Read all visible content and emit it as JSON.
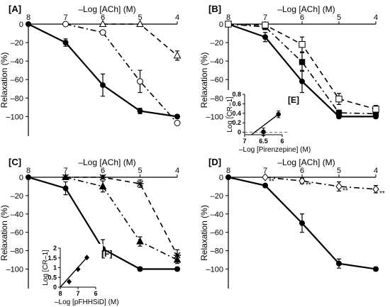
{
  "chart_data": [
    {
      "type": "line",
      "panel_label": "[A]",
      "xlabel": "–Log [ACh] (M)",
      "ylabel": "Relaxation (%)",
      "xticks": [
        "8",
        "7",
        "6",
        "5",
        "4"
      ],
      "yticks": [
        "0",
        "–20",
        "–40",
        "–60",
        "–80",
        "–100"
      ],
      "xlim": [
        8,
        4
      ],
      "ylim": [
        -112,
        0
      ],
      "series": [
        {
          "style": "solid",
          "marker": "filled-circle",
          "x": [
            8,
            7,
            6,
            5,
            4
          ],
          "y": [
            0,
            -20,
            -66,
            -94,
            -100
          ],
          "err": [
            0,
            4,
            12,
            3,
            2
          ]
        },
        {
          "style": "dashdot",
          "marker": "open-circle",
          "x": [
            7,
            6,
            5,
            4
          ],
          "y": [
            0,
            -9,
            -62,
            -107
          ],
          "err": [
            0,
            2,
            12,
            2
          ]
        },
        {
          "style": "dashed",
          "marker": "open-triangle",
          "x": [
            6,
            5,
            4
          ],
          "y": [
            0,
            0,
            -34
          ],
          "err": [
            0,
            0,
            5
          ]
        }
      ]
    },
    {
      "type": "line",
      "panel_label": "[B]",
      "xlabel": "–Log [ACh] (M)",
      "ylabel": "Relaxation (%)",
      "xticks": [
        "8",
        "7",
        "6",
        "5",
        "4"
      ],
      "yticks": [
        "0",
        "–20",
        "–40",
        "–60",
        "–80",
        "–100"
      ],
      "xlim": [
        8,
        4
      ],
      "ylim": [
        -112,
        0
      ],
      "series": [
        {
          "style": "solid",
          "marker": "filled-circle",
          "x": [
            8,
            7,
            6,
            5,
            4
          ],
          "y": [
            0,
            -14,
            -62,
            -100,
            -100
          ],
          "err": [
            0,
            5,
            12,
            2,
            2
          ]
        },
        {
          "style": "dashdot",
          "marker": "filled-square",
          "x": [
            8,
            7,
            6,
            5,
            4
          ],
          "y": [
            0,
            -3,
            -41,
            -96,
            -97
          ],
          "err": [
            0,
            3,
            10,
            3,
            3
          ]
        },
        {
          "style": "dashed",
          "marker": "open-square",
          "x": [
            8,
            7,
            6,
            5,
            4
          ],
          "y": [
            0,
            -1,
            -22,
            -81,
            -92
          ],
          "err": [
            0,
            2,
            8,
            6,
            4
          ]
        }
      ],
      "inset": {
        "label": "[E]",
        "xlabel": "–Log [Pirenzepine] (M)",
        "ylabel": "Log [CR–1]",
        "xticks": [
          "7",
          "6.5",
          "6"
        ],
        "yticks": [
          "0.8",
          "0.6",
          "0.4",
          "0.2",
          "0"
        ],
        "xlim": [
          7,
          6
        ],
        "ylim": [
          -0.05,
          0.8
        ],
        "reference_y": 0,
        "points": {
          "x": [
            6.5,
            6.1
          ],
          "y": [
            0.01,
            0.38
          ],
          "err": [
            0.08,
            0.07
          ]
        },
        "line": {
          "x": [
            6.82,
            6.1
          ],
          "y": [
            -0.05,
            0.38
          ]
        }
      }
    },
    {
      "type": "line",
      "panel_label": "[C]",
      "xlabel": "–Log [ACh] (M)",
      "ylabel": "Relaxation (%)",
      "xticks": [
        "8",
        "7",
        "6",
        "5",
        "4"
      ],
      "yticks": [
        "0",
        "–20",
        "–40",
        "–60",
        "–80",
        "–100"
      ],
      "xlim": [
        8,
        4
      ],
      "ylim": [
        -112,
        0
      ],
      "series": [
        {
          "style": "solid",
          "marker": "filled-circle",
          "x": [
            8,
            7,
            6,
            5,
            4
          ],
          "y": [
            0,
            -12,
            -78,
            -100,
            -100
          ],
          "err": [
            0,
            7,
            10,
            2,
            2
          ]
        },
        {
          "style": "dashdot",
          "marker": "filled-triangle",
          "x": [
            7,
            6,
            5,
            4
          ],
          "y": [
            0,
            -10,
            -70,
            -90
          ],
          "err": [
            0,
            6,
            5,
            4
          ]
        },
        {
          "style": "dashed",
          "marker": "star",
          "x": [
            7,
            6,
            5,
            4
          ],
          "y": [
            0,
            0,
            -7,
            -85
          ],
          "err": [
            0,
            2,
            4,
            6
          ]
        }
      ],
      "inset": {
        "label": "[F]",
        "xlabel": "–Log [pFHHSiD] (M)",
        "ylabel": "Log [CR–1]",
        "xticks": [
          "8",
          "7",
          "6"
        ],
        "yticks": [
          "2",
          "1.5",
          "1",
          "0.5",
          "0"
        ],
        "xlim": [
          8,
          6
        ],
        "ylim": [
          0,
          2
        ],
        "points": {
          "x": [
            7.5,
            7,
            6.5
          ],
          "y": [
            0.28,
            0.92,
            1.52
          ],
          "err": [
            0,
            0,
            0
          ]
        },
        "line": {
          "x": [
            8,
            6.5
          ],
          "y": [
            0,
            1.52
          ]
        }
      }
    },
    {
      "type": "line",
      "panel_label": "[D]",
      "xlabel": "–Log [ACh] (M)",
      "ylabel": "Relaxation (%)",
      "xticks": [
        "8",
        "7",
        "6",
        "5",
        "4"
      ],
      "yticks": [
        "0",
        "–20",
        "–40",
        "–60",
        "–80",
        "–100"
      ],
      "xlim": [
        8,
        4
      ],
      "ylim": [
        -112,
        0
      ],
      "series": [
        {
          "style": "solid",
          "marker": "filled-circle",
          "x": [
            8,
            7,
            6,
            5,
            4
          ],
          "y": [
            0,
            -9,
            -50,
            -94,
            -100
          ],
          "err": [
            0,
            2,
            10,
            5,
            2
          ]
        },
        {
          "style": "dashdot",
          "marker": "open-diamond",
          "x": [
            7,
            6,
            5,
            4
          ],
          "y": [
            0,
            -4,
            -10,
            -13
          ],
          "err": [
            0,
            3,
            5,
            4
          ],
          "annotations": [
            "**",
            "**",
            "**",
            "**"
          ]
        }
      ]
    }
  ]
}
